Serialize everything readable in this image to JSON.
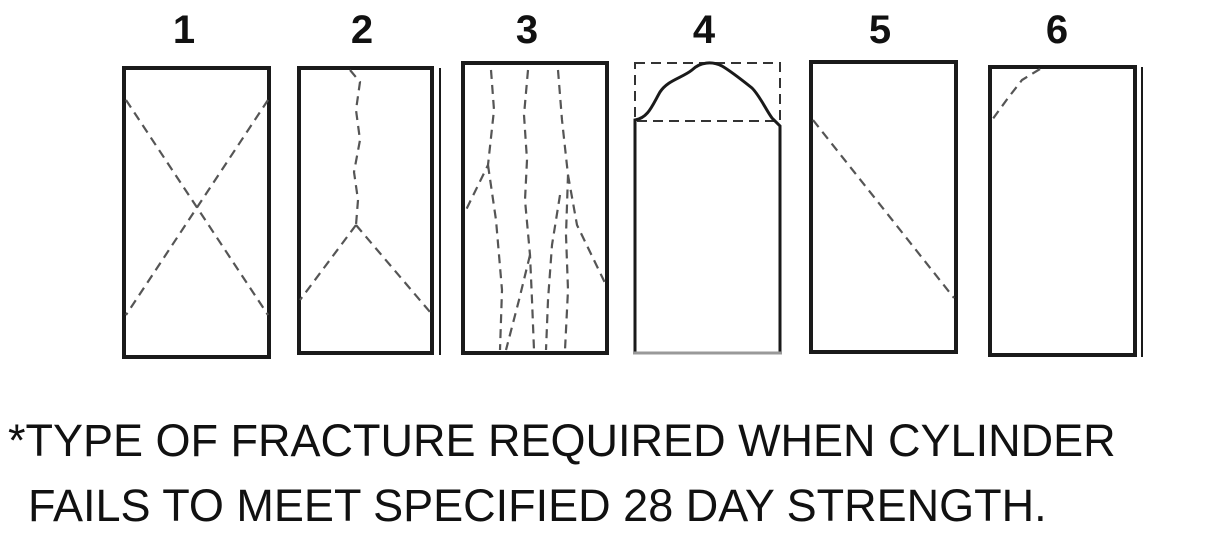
{
  "diagram": {
    "types": [
      {
        "number": "1",
        "icon": "cone-cone-fracture-icon"
      },
      {
        "number": "2",
        "icon": "cone-split-fracture-icon"
      },
      {
        "number": "3",
        "icon": "columnar-vertical-cracking-icon"
      },
      {
        "number": "4",
        "icon": "top-cone-fracture-icon"
      },
      {
        "number": "5",
        "icon": "diagonal-shear-fracture-icon"
      },
      {
        "number": "6",
        "icon": "corner-fracture-icon"
      }
    ]
  },
  "note": {
    "line1": "*TYPE OF FRACTURE REQUIRED WHEN CYLINDER",
    "line2": "FAILS TO MEET SPECIFIED 28 DAY STRENGTH."
  }
}
